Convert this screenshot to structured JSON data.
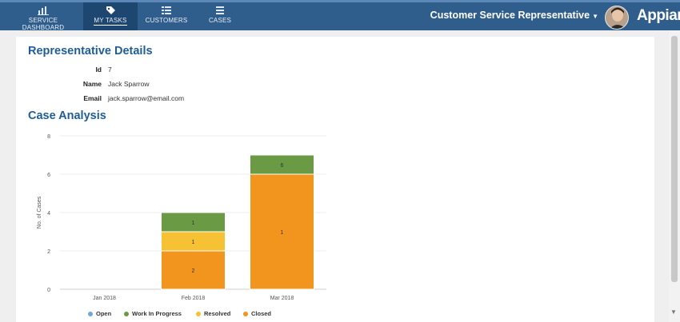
{
  "nav": {
    "tabs": [
      {
        "label": "SERVICE DASHBOARD",
        "icon": "bar-chart-icon"
      },
      {
        "label": "MY TASKS",
        "icon": "tag-icon"
      },
      {
        "label": "CUSTOMERS",
        "icon": "list-icon"
      },
      {
        "label": "CASES",
        "icon": "stack-icon"
      }
    ],
    "active_tab": "MY TASKS",
    "user_menu": "Customer Service Representative",
    "logo": "Appian"
  },
  "representative": {
    "title": "Representative Details",
    "fields": [
      {
        "label": "Id",
        "value": "7"
      },
      {
        "label": "Name",
        "value": "Jack Sparrow"
      },
      {
        "label": "Email",
        "value": "jack.sparrow@email.com"
      }
    ]
  },
  "analysis": {
    "title": "Case Analysis"
  },
  "chart_data": {
    "type": "bar",
    "stacked": true,
    "categories": [
      "Jan 2018",
      "Feb 2018",
      "Mar 2018"
    ],
    "series": [
      {
        "name": "Open",
        "color": "#6fa8dc",
        "values": [
          0,
          0,
          0
        ]
      },
      {
        "name": "Work In Progress",
        "color": "#6b9a45",
        "values": [
          0,
          1,
          1
        ]
      },
      {
        "name": "Resolved",
        "color": "#f6c233",
        "values": [
          0,
          1,
          0
        ]
      },
      {
        "name": "Closed",
        "color": "#f2951e",
        "values": [
          0,
          2,
          6
        ]
      }
    ],
    "ylabel": "No. of Cases",
    "ylim": [
      0,
      8
    ],
    "yticks": [
      0,
      2,
      4,
      6,
      8
    ],
    "grid": true,
    "legend": "bottom",
    "data_labels": {
      "Feb 2018": [
        "1",
        "1",
        "2"
      ],
      "Mar 2018": [
        "6",
        "1"
      ]
    }
  }
}
